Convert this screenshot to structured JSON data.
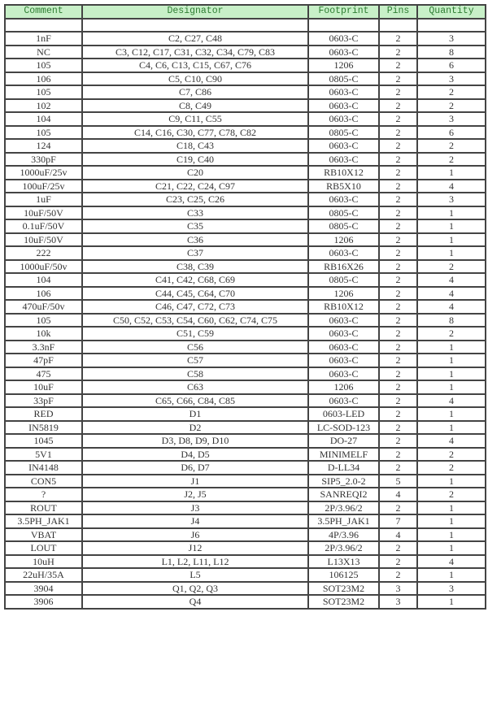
{
  "header": {
    "comment": "Comment",
    "designator": "Designator",
    "footprint": "Footprint",
    "pins": "Pins",
    "quantity": "Quantity"
  },
  "header_color": "#c8f0c8",
  "rows": [
    [
      "",
      "",
      "",
      "",
      ""
    ],
    [
      "1nF",
      "C2, C27, C48",
      "0603-C",
      "2",
      "3"
    ],
    [
      "NC",
      "C3, C12, C17, C31, C32, C34, C79, C83",
      "0603-C",
      "2",
      "8"
    ],
    [
      "105",
      "C4, C6, C13, C15, C67, C76",
      "1206",
      "2",
      "6"
    ],
    [
      "106",
      "C5, C10, C90",
      "0805-C",
      "2",
      "3"
    ],
    [
      "105",
      "C7, C86",
      "0603-C",
      "2",
      "2"
    ],
    [
      "102",
      "C8, C49",
      "0603-C",
      "2",
      "2"
    ],
    [
      "104",
      "C9, C11, C55",
      "0603-C",
      "2",
      "3"
    ],
    [
      "105",
      "C14, C16, C30, C77, C78, C82",
      "0805-C",
      "2",
      "6"
    ],
    [
      "124",
      "C18, C43",
      "0603-C",
      "2",
      "2"
    ],
    [
      "330pF",
      "C19, C40",
      "0603-C",
      "2",
      "2"
    ],
    [
      "1000uF/25v",
      "C20",
      "RB10X12",
      "2",
      "1"
    ],
    [
      "100uF/25v",
      "C21, C22, C24, C97",
      "RB5X10",
      "2",
      "4"
    ],
    [
      "1uF",
      "C23, C25, C26",
      "0603-C",
      "2",
      "3"
    ],
    [
      "10uF/50V",
      "C33",
      "0805-C",
      "2",
      "1"
    ],
    [
      "0.1uF/50V",
      "C35",
      "0805-C",
      "2",
      "1"
    ],
    [
      "10uF/50V",
      "C36",
      "1206",
      "2",
      "1"
    ],
    [
      "222",
      "C37",
      "0603-C",
      "2",
      "1"
    ],
    [
      "1000uF/50v",
      "C38, C39",
      "RB16X26",
      "2",
      "2"
    ],
    [
      "104",
      "C41, C42, C68, C69",
      "0805-C",
      "2",
      "4"
    ],
    [
      "106",
      "C44, C45, C64, C70",
      "1206",
      "2",
      "4"
    ],
    [
      "470uF/50v",
      "C46, C47, C72, C73",
      "RB10X12",
      "2",
      "4"
    ],
    [
      "105",
      "C50, C52, C53, C54, C60, C62, C74, C75",
      "0603-C",
      "2",
      "8"
    ],
    [
      "10k",
      "C51, C59",
      "0603-C",
      "2",
      "2"
    ],
    [
      "3.3nF",
      "C56",
      "0603-C",
      "2",
      "1"
    ],
    [
      "47pF",
      "C57",
      "0603-C",
      "2",
      "1"
    ],
    [
      "475",
      "C58",
      "0603-C",
      "2",
      "1"
    ],
    [
      "10uF",
      "C63",
      "1206",
      "2",
      "1"
    ],
    [
      "33pF",
      "C65, C66, C84, C85",
      "0603-C",
      "2",
      "4"
    ],
    [
      "RED",
      "D1",
      "0603-LED",
      "2",
      "1"
    ],
    [
      "IN5819",
      "D2",
      "LC-SOD-123",
      "2",
      "1"
    ],
    [
      "1045",
      "D3, D8, D9, D10",
      "DO-27",
      "2",
      "4"
    ],
    [
      "5V1",
      "D4, D5",
      "MINIMELF",
      "2",
      "2"
    ],
    [
      "IN4148",
      "D6, D7",
      "D-LL34",
      "2",
      "2"
    ],
    [
      "CON5",
      "J1",
      "SIP5_2.0-2",
      "5",
      "1"
    ],
    [
      "?",
      "J2, J5",
      "SANREQI2",
      "4",
      "2"
    ],
    [
      "ROUT",
      "J3",
      "2P/3.96/2",
      "2",
      "1"
    ],
    [
      "3.5PH_JAK1",
      "J4",
      "3.5PH_JAK1",
      "7",
      "1"
    ],
    [
      "VBAT",
      "J6",
      "4P/3.96",
      "4",
      "1"
    ],
    [
      "LOUT",
      "J12",
      "2P/3.96/2",
      "2",
      "1"
    ],
    [
      "10uH",
      "L1, L2, L11, L12",
      "L13X13",
      "2",
      "4"
    ],
    [
      "22uH/35A",
      "L5",
      "106125",
      "2",
      "1"
    ],
    [
      "3904",
      "Q1, Q2, Q3",
      "SOT23M2",
      "3",
      "3"
    ],
    [
      "3906",
      "Q4",
      "SOT23M2",
      "3",
      "1"
    ]
  ]
}
